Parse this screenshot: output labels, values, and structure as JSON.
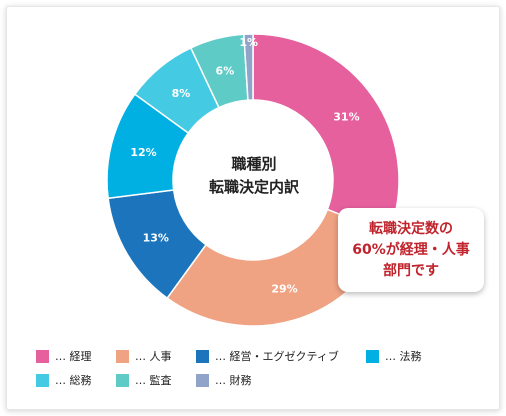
{
  "chart_data": {
    "type": "pie",
    "donut": true,
    "center_label": [
      "職種別",
      "転職決定内訳"
    ],
    "slices": [
      {
        "label": "経理",
        "value": 31,
        "display": "31%",
        "color": "#e6609e"
      },
      {
        "label": "人事",
        "value": 29,
        "display": "29%",
        "color": "#f0a383"
      },
      {
        "label": "経営・エグゼクティブ",
        "value": 13,
        "display": "13%",
        "color": "#1c75bc"
      },
      {
        "label": "法務",
        "value": 12,
        "display": "12%",
        "color": "#00b0e3"
      },
      {
        "label": "総務",
        "value": 8,
        "display": "8%",
        "color": "#44cae3"
      },
      {
        "label": "監査",
        "value": 6,
        "display": "6%",
        "color": "#5fcbc6"
      },
      {
        "label": "財務",
        "value": 1,
        "display": "1%",
        "color": "#8fa4c8"
      }
    ],
    "legend_prefix": "…",
    "callout": [
      "転職決定数の",
      "60%が経理・人事",
      "部門です"
    ]
  }
}
